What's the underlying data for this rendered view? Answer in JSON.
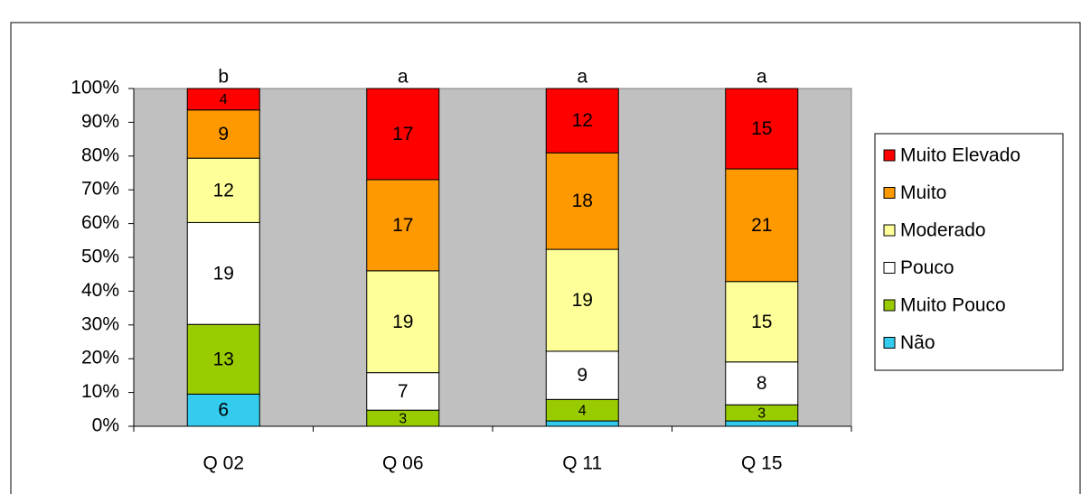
{
  "chart_data": {
    "type": "bar",
    "stacking": "percent",
    "categories": [
      "Q 02",
      "Q 06",
      "Q 11",
      "Q 15"
    ],
    "annotations": [
      "b",
      "a",
      "a",
      "a"
    ],
    "series": [
      {
        "name": "Não",
        "color": "#33ccee",
        "values": [
          6,
          0,
          1,
          1
        ],
        "value_labels": [
          "6",
          null,
          null,
          null
        ]
      },
      {
        "name": "Muito Pouco",
        "color": "#99cc00",
        "values": [
          13,
          3,
          4,
          3
        ]
      },
      {
        "name": "Pouco",
        "color": "#ffffff",
        "values": [
          19,
          7,
          9,
          8
        ]
      },
      {
        "name": "Moderado",
        "color": "#ffff99",
        "values": [
          12,
          19,
          19,
          15
        ]
      },
      {
        "name": "Muito",
        "color": "#ff9900",
        "values": [
          9,
          17,
          18,
          21
        ]
      },
      {
        "name": "Muito Elevado",
        "color": "#ff0000",
        "values": [
          4,
          17,
          12,
          15
        ]
      }
    ],
    "ylim": [
      0,
      100
    ],
    "yticks": [
      {
        "value": 0,
        "label": "0%"
      },
      {
        "value": 10,
        "label": "10%"
      },
      {
        "value": 20,
        "label": "20%"
      },
      {
        "value": 30,
        "label": "30%"
      },
      {
        "value": 40,
        "label": "40%"
      },
      {
        "value": 50,
        "label": "50%"
      },
      {
        "value": 60,
        "label": "60%"
      },
      {
        "value": 70,
        "label": "70%"
      },
      {
        "value": 80,
        "label": "80%"
      },
      {
        "value": 90,
        "label": "90%"
      },
      {
        "value": 100,
        "label": "100%"
      }
    ],
    "grid": false,
    "legend": "right"
  }
}
